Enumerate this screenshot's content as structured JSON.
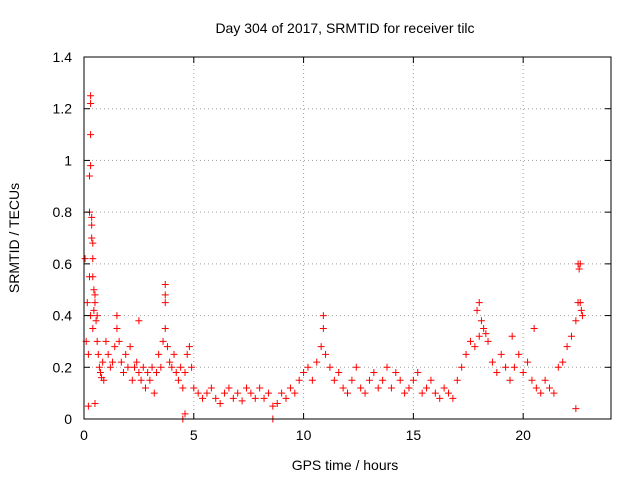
{
  "chart_data": {
    "type": "scatter",
    "title": "Day 304 of 2017, SRMTID for receiver tilc",
    "xlabel": "GPS time / hours",
    "ylabel": "SRMTID / TECUs",
    "xlim": [
      0,
      24
    ],
    "ylim": [
      0,
      1.4
    ],
    "xticks": [
      0,
      5,
      10,
      15,
      20
    ],
    "xtick_labels": [
      "0",
      "5",
      "10",
      "15",
      "20"
    ],
    "yticks": [
      0,
      0.2,
      0.4,
      0.6,
      0.8,
      1,
      1.2,
      1.4
    ],
    "ytick_labels": [
      "0",
      "0.2",
      "0.4",
      "0.6",
      "0.8",
      "1",
      "1.2",
      "1.4"
    ],
    "grid": true,
    "marker": "plus",
    "color": "#ff0000",
    "series": [
      {
        "name": "SRMTID",
        "x": [
          0.05,
          0.1,
          0.15,
          0.2,
          0.25,
          0.3,
          0.35,
          0.4,
          0.45,
          0.5,
          0.55,
          0.6,
          0.65,
          0.7,
          0.75,
          0.8,
          0.85,
          0.9,
          1.0,
          1.1,
          1.2,
          1.3,
          1.4,
          1.5,
          1.6,
          1.7,
          1.8,
          1.9,
          2.0,
          2.1,
          2.2,
          2.3,
          2.4,
          2.5,
          2.6,
          2.7,
          2.8,
          2.9,
          3.0,
          3.1,
          3.2,
          3.3,
          3.4,
          3.5,
          3.6,
          3.7,
          3.8,
          3.9,
          4.0,
          4.1,
          4.2,
          4.3,
          4.4,
          4.5,
          4.6,
          4.7,
          4.8,
          4.9,
          5.0,
          5.2,
          5.4,
          5.6,
          5.8,
          6.0,
          6.2,
          6.4,
          6.6,
          6.8,
          7.0,
          7.2,
          7.4,
          7.6,
          7.8,
          8.0,
          8.2,
          8.4,
          8.6,
          8.8,
          9.0,
          9.2,
          9.4,
          9.6,
          9.8,
          10.0,
          10.2,
          10.4,
          10.6,
          10.8,
          11.0,
          11.2,
          11.4,
          11.6,
          11.8,
          12.0,
          12.2,
          12.4,
          12.6,
          12.8,
          13.0,
          13.2,
          13.4,
          13.6,
          13.8,
          14.0,
          14.2,
          14.4,
          14.6,
          14.8,
          15.0,
          15.2,
          15.4,
          15.6,
          15.8,
          16.0,
          16.2,
          16.4,
          16.6,
          16.8,
          17.0,
          17.2,
          17.4,
          17.6,
          17.8,
          18.0,
          18.2,
          18.4,
          18.6,
          18.8,
          19.0,
          19.2,
          19.4,
          19.6,
          19.8,
          20.0,
          20.2,
          20.4,
          20.6,
          20.8,
          21.0,
          21.2,
          21.4,
          21.6,
          21.8,
          22.0,
          22.2,
          22.4,
          22.5,
          22.6,
          22.7,
          0.3,
          0.3,
          0.3,
          0.3,
          0.25,
          0.25,
          0.35,
          0.35,
          0.4,
          0.4,
          0.4,
          0.45,
          0.5,
          0.6,
          0.2,
          0.5,
          1.5,
          2.5,
          3.7,
          3.7,
          3.7,
          4.5,
          4.6,
          8.6,
          10.9,
          10.9,
          17.9,
          18.0,
          18.1,
          18.3,
          19.5,
          20.5,
          22.4,
          22.5,
          22.55,
          22.6,
          22.65
        ],
        "y": [
          0.62,
          0.3,
          0.45,
          0.25,
          0.55,
          0.4,
          0.7,
          0.35,
          0.42,
          0.48,
          0.38,
          0.3,
          0.25,
          0.2,
          0.18,
          0.16,
          0.22,
          0.15,
          0.3,
          0.25,
          0.2,
          0.22,
          0.28,
          0.35,
          0.3,
          0.22,
          0.18,
          0.25,
          0.2,
          0.28,
          0.15,
          0.2,
          0.22,
          0.18,
          0.15,
          0.2,
          0.12,
          0.18,
          0.15,
          0.2,
          0.1,
          0.18,
          0.25,
          0.2,
          0.3,
          0.35,
          0.28,
          0.22,
          0.2,
          0.25,
          0.18,
          0.15,
          0.2,
          0.12,
          0.18,
          0.25,
          0.28,
          0.2,
          0.12,
          0.1,
          0.08,
          0.1,
          0.12,
          0.08,
          0.06,
          0.1,
          0.12,
          0.08,
          0.1,
          0.07,
          0.12,
          0.1,
          0.08,
          0.12,
          0.08,
          0.1,
          0.05,
          0.06,
          0.1,
          0.08,
          0.12,
          0.1,
          0.15,
          0.18,
          0.2,
          0.15,
          0.22,
          0.28,
          0.25,
          0.2,
          0.15,
          0.18,
          0.12,
          0.1,
          0.15,
          0.2,
          0.12,
          0.1,
          0.15,
          0.18,
          0.12,
          0.15,
          0.2,
          0.12,
          0.18,
          0.15,
          0.1,
          0.12,
          0.15,
          0.18,
          0.1,
          0.12,
          0.15,
          0.1,
          0.08,
          0.12,
          0.1,
          0.08,
          0.15,
          0.2,
          0.25,
          0.3,
          0.28,
          0.32,
          0.35,
          0.3,
          0.22,
          0.18,
          0.25,
          0.2,
          0.15,
          0.2,
          0.25,
          0.18,
          0.22,
          0.15,
          0.12,
          0.1,
          0.15,
          0.12,
          0.1,
          0.2,
          0.22,
          0.28,
          0.32,
          0.38,
          0.45,
          0.6,
          0.4,
          1.25,
          1.22,
          1.1,
          0.98,
          0.94,
          0.8,
          0.78,
          0.75,
          0.68,
          0.62,
          0.55,
          0.5,
          0.45,
          0.4,
          0.05,
          0.06,
          0.4,
          0.38,
          0.52,
          0.48,
          0.45,
          0.0,
          0.02,
          0.0,
          0.4,
          0.35,
          0.42,
          0.45,
          0.38,
          0.33,
          0.32,
          0.35,
          0.04,
          0.6,
          0.58,
          0.45,
          0.42
        ]
      }
    ]
  }
}
